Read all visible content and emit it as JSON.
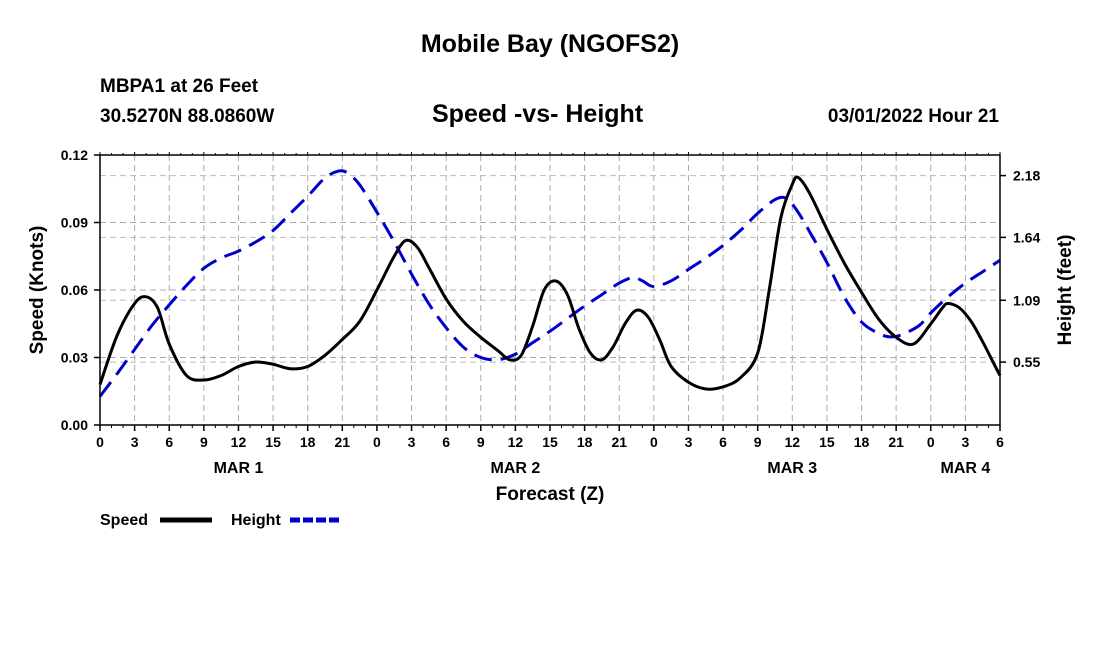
{
  "page": {
    "title": "Mobile Bay (NGOFS2)",
    "station": "MBPA1 at 26 Feet",
    "coordinates": "30.5270N  88.0860W",
    "timestamp": "03/01/2022 Hour 21"
  },
  "chart_data": {
    "type": "line",
    "title": "Speed -vs- Height",
    "xlabel": "Forecast (Z)",
    "ylabel": "Speed (Knots)",
    "y2label": "Height (feet)",
    "x_unit": "hours from MAR 1 00Z",
    "xlim": [
      0,
      78
    ],
    "ylim": [
      0,
      0.12
    ],
    "y2lim": [
      0.0,
      2.36
    ],
    "x_ticks": [
      0,
      3,
      6,
      9,
      12,
      15,
      18,
      21,
      24,
      27,
      30,
      33,
      36,
      39,
      42,
      45,
      48,
      51,
      54,
      57,
      60,
      63,
      66,
      69,
      72,
      75,
      78
    ],
    "x_tick_labels": [
      "0",
      "3",
      "6",
      "9",
      "12",
      "15",
      "18",
      "21",
      "0",
      "3",
      "6",
      "9",
      "12",
      "15",
      "18",
      "21",
      "0",
      "3",
      "6",
      "9",
      "12",
      "15",
      "18",
      "21",
      "0",
      "3",
      "6"
    ],
    "date_labels": [
      {
        "x": 12,
        "label": "MAR 1"
      },
      {
        "x": 36,
        "label": "MAR 2"
      },
      {
        "x": 60,
        "label": "MAR 3"
      },
      {
        "x": 75,
        "label": "MAR 4"
      }
    ],
    "y_ticks": [
      0,
      0.03,
      0.06,
      0.09,
      0.12
    ],
    "y_tick_labels": [
      "0.00",
      "0.03",
      "0.06",
      "0.09",
      "0.12"
    ],
    "y2_ticks": [
      0.55,
      1.09,
      1.64,
      2.18
    ],
    "y2_tick_labels": [
      "0.55",
      "1.09",
      "1.64",
      "2.18"
    ],
    "grid": true,
    "legend_position": "bottom-left",
    "series": [
      {
        "name": "Speed",
        "axis": "left",
        "color": "#000000",
        "style": "solid",
        "points": [
          [
            0,
            0.018
          ],
          [
            1.5,
            0.04
          ],
          [
            3,
            0.054
          ],
          [
            4,
            0.057
          ],
          [
            5,
            0.052
          ],
          [
            6,
            0.036
          ],
          [
            7.5,
            0.022
          ],
          [
            9,
            0.02
          ],
          [
            10.5,
            0.022
          ],
          [
            12,
            0.026
          ],
          [
            13.5,
            0.028
          ],
          [
            15,
            0.027
          ],
          [
            16.5,
            0.025
          ],
          [
            18,
            0.026
          ],
          [
            19.5,
            0.031
          ],
          [
            21,
            0.038
          ],
          [
            22.5,
            0.046
          ],
          [
            24,
            0.06
          ],
          [
            25.5,
            0.075
          ],
          [
            26.5,
            0.082
          ],
          [
            27.5,
            0.079
          ],
          [
            28.5,
            0.07
          ],
          [
            30,
            0.056
          ],
          [
            31.5,
            0.046
          ],
          [
            33,
            0.039
          ],
          [
            34.5,
            0.033
          ],
          [
            35.5,
            0.029
          ],
          [
            36.5,
            0.031
          ],
          [
            37.5,
            0.044
          ],
          [
            38.5,
            0.06
          ],
          [
            39.5,
            0.064
          ],
          [
            40.5,
            0.058
          ],
          [
            41.5,
            0.043
          ],
          [
            42.5,
            0.032
          ],
          [
            43.5,
            0.029
          ],
          [
            44.5,
            0.035
          ],
          [
            45.5,
            0.045
          ],
          [
            46.5,
            0.051
          ],
          [
            47.5,
            0.048
          ],
          [
            48.5,
            0.038
          ],
          [
            49.5,
            0.026
          ],
          [
            51,
            0.019
          ],
          [
            52.5,
            0.016
          ],
          [
            54,
            0.017
          ],
          [
            55.5,
            0.021
          ],
          [
            57,
            0.032
          ],
          [
            58,
            0.06
          ],
          [
            59,
            0.092
          ],
          [
            60,
            0.107
          ],
          [
            60.5,
            0.11
          ],
          [
            61.5,
            0.103
          ],
          [
            63,
            0.087
          ],
          [
            64.5,
            0.072
          ],
          [
            66,
            0.059
          ],
          [
            67.5,
            0.047
          ],
          [
            69,
            0.039
          ],
          [
            70.5,
            0.036
          ],
          [
            72,
            0.045
          ],
          [
            73,
            0.052
          ],
          [
            73.5,
            0.054
          ],
          [
            74.5,
            0.052
          ],
          [
            75.5,
            0.046
          ],
          [
            76.5,
            0.037
          ],
          [
            77.5,
            0.027
          ],
          [
            78,
            0.022
          ]
        ]
      },
      {
        "name": "Height",
        "axis": "right",
        "color": "#0000cc",
        "style": "dashed",
        "points": [
          [
            0,
            0.25
          ],
          [
            1.5,
            0.45
          ],
          [
            3,
            0.66
          ],
          [
            4.5,
            0.87
          ],
          [
            6,
            1.05
          ],
          [
            7.5,
            1.22
          ],
          [
            9,
            1.37
          ],
          [
            10.5,
            1.46
          ],
          [
            12,
            1.52
          ],
          [
            13.5,
            1.6
          ],
          [
            15,
            1.7
          ],
          [
            16.5,
            1.85
          ],
          [
            18,
            2.0
          ],
          [
            19.5,
            2.16
          ],
          [
            20.7,
            2.22
          ],
          [
            21.5,
            2.2
          ],
          [
            22.5,
            2.1
          ],
          [
            24,
            1.86
          ],
          [
            25.5,
            1.6
          ],
          [
            27,
            1.32
          ],
          [
            28.5,
            1.06
          ],
          [
            30,
            0.85
          ],
          [
            31.5,
            0.68
          ],
          [
            33,
            0.59
          ],
          [
            34.5,
            0.57
          ],
          [
            36,
            0.62
          ],
          [
            37.5,
            0.72
          ],
          [
            39,
            0.82
          ],
          [
            40.5,
            0.93
          ],
          [
            42,
            1.04
          ],
          [
            43.5,
            1.14
          ],
          [
            45,
            1.24
          ],
          [
            46.2,
            1.29
          ],
          [
            47,
            1.26
          ],
          [
            48,
            1.21
          ],
          [
            49.5,
            1.26
          ],
          [
            51,
            1.36
          ],
          [
            52.5,
            1.46
          ],
          [
            54,
            1.57
          ],
          [
            55.5,
            1.7
          ],
          [
            57,
            1.85
          ],
          [
            58.5,
            1.97
          ],
          [
            59.5,
            1.98
          ],
          [
            60.5,
            1.86
          ],
          [
            61.5,
            1.69
          ],
          [
            63,
            1.42
          ],
          [
            64.5,
            1.12
          ],
          [
            66,
            0.9
          ],
          [
            67.5,
            0.8
          ],
          [
            68.5,
            0.77
          ],
          [
            69.5,
            0.79
          ],
          [
            71,
            0.87
          ],
          [
            72,
            0.98
          ],
          [
            73.5,
            1.12
          ],
          [
            75,
            1.24
          ],
          [
            76.5,
            1.34
          ],
          [
            78,
            1.44
          ]
        ]
      }
    ]
  }
}
